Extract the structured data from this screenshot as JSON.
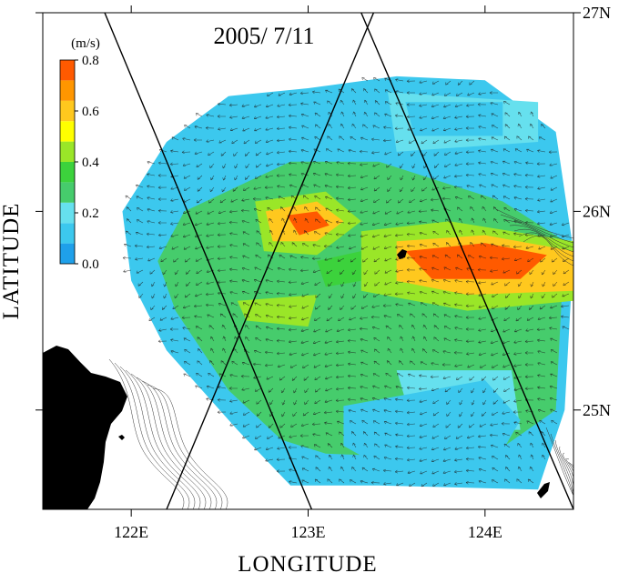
{
  "chart_data": {
    "type": "heatmap",
    "title": "2005/ 7/11",
    "xlabel": "LONGITUDE",
    "ylabel": "LATITUDE",
    "xlim": [
      121.5,
      124.5
    ],
    "ylim": [
      24.5,
      27.0
    ],
    "x_ticks": [
      {
        "value": 122,
        "label": "122E"
      },
      {
        "value": 123,
        "label": "123E"
      },
      {
        "value": 124,
        "label": "124E"
      }
    ],
    "y_ticks": [
      {
        "value": 25,
        "label": "25N"
      },
      {
        "value": 26,
        "label": "26N"
      },
      {
        "value": 27,
        "label": "27N"
      }
    ],
    "colorbar": {
      "unit": "(m/s)",
      "ticks": [
        "0.0",
        "0.2",
        "0.4",
        "0.6",
        "0.8"
      ],
      "colors": [
        "#1fa0ea",
        "#3cc8ee",
        "#66e0ee",
        "#46cc6c",
        "#3cd23c",
        "#9ae628",
        "#ffff00",
        "#ffc81e",
        "#ff9600",
        "#ff5a00"
      ]
    },
    "speed_regions": [
      {
        "level": 1,
        "poly": [
          [
            122.55,
            26.58
          ],
          [
            123.0,
            26.62
          ],
          [
            123.5,
            26.68
          ],
          [
            124.0,
            26.66
          ],
          [
            124.4,
            26.4
          ],
          [
            124.5,
            25.8
          ],
          [
            124.45,
            25.0
          ],
          [
            124.3,
            24.6
          ],
          [
            123.4,
            24.62
          ],
          [
            122.9,
            24.62
          ],
          [
            122.6,
            24.9
          ],
          [
            122.2,
            25.3
          ],
          [
            122.0,
            25.65
          ],
          [
            121.95,
            26.0
          ],
          [
            122.2,
            26.35
          ]
        ]
      },
      {
        "level": 3,
        "poly": [
          [
            122.3,
            26.0
          ],
          [
            122.9,
            26.25
          ],
          [
            123.4,
            26.25
          ],
          [
            124.1,
            26.05
          ],
          [
            124.45,
            25.85
          ],
          [
            124.4,
            25.0
          ],
          [
            124.0,
            24.75
          ],
          [
            123.1,
            24.78
          ],
          [
            122.85,
            24.85
          ],
          [
            122.55,
            25.1
          ],
          [
            122.25,
            25.5
          ],
          [
            122.15,
            25.75
          ]
        ]
      },
      {
        "level": 2,
        "poly": [
          [
            123.5,
            25.2
          ],
          [
            124.15,
            25.2
          ],
          [
            124.2,
            24.9
          ],
          [
            123.6,
            24.9
          ]
        ]
      },
      {
        "level": 1,
        "poly": [
          [
            123.2,
            25.02
          ],
          [
            124.0,
            25.15
          ],
          [
            124.2,
            24.95
          ],
          [
            124.05,
            24.72
          ],
          [
            123.4,
            24.72
          ],
          [
            123.2,
            24.82
          ]
        ]
      },
      {
        "level": 2,
        "poly": [
          [
            123.45,
            26.6
          ],
          [
            124.3,
            26.55
          ],
          [
            124.3,
            26.35
          ],
          [
            123.5,
            26.3
          ]
        ]
      },
      {
        "level": 1,
        "poly": [
          [
            123.55,
            26.55
          ],
          [
            124.1,
            26.55
          ],
          [
            124.1,
            26.38
          ],
          [
            123.6,
            26.38
          ]
        ]
      },
      {
        "level": 5,
        "poly": [
          [
            122.7,
            26.05
          ],
          [
            123.1,
            26.1
          ],
          [
            123.3,
            25.95
          ],
          [
            123.05,
            25.78
          ],
          [
            122.75,
            25.8
          ]
        ]
      },
      {
        "level": 5,
        "poly": [
          [
            123.3,
            25.9
          ],
          [
            123.8,
            25.95
          ],
          [
            124.5,
            25.85
          ],
          [
            124.5,
            25.55
          ],
          [
            123.9,
            25.5
          ],
          [
            123.3,
            25.6
          ]
        ]
      },
      {
        "level": 5,
        "poly": [
          [
            122.6,
            25.55
          ],
          [
            123.05,
            25.58
          ],
          [
            123.0,
            25.42
          ],
          [
            122.65,
            25.45
          ]
        ]
      },
      {
        "level": 7,
        "poly": [
          [
            122.76,
            26.0
          ],
          [
            123.05,
            26.05
          ],
          [
            123.2,
            25.95
          ],
          [
            123.05,
            25.85
          ],
          [
            122.8,
            25.85
          ]
        ]
      },
      {
        "level": 7,
        "poly": [
          [
            123.5,
            25.85
          ],
          [
            124.0,
            25.88
          ],
          [
            124.5,
            25.8
          ],
          [
            124.5,
            25.6
          ],
          [
            123.9,
            25.58
          ],
          [
            123.5,
            25.65
          ]
        ]
      },
      {
        "level": 9,
        "poly": [
          [
            122.88,
            25.98
          ],
          [
            123.05,
            26.0
          ],
          [
            123.12,
            25.93
          ],
          [
            122.95,
            25.88
          ]
        ]
      },
      {
        "level": 9,
        "poly": [
          [
            123.55,
            25.8
          ],
          [
            124.0,
            25.84
          ],
          [
            124.35,
            25.78
          ],
          [
            124.2,
            25.66
          ],
          [
            123.7,
            25.66
          ]
        ]
      },
      {
        "level": 4,
        "poly": [
          [
            123.05,
            25.75
          ],
          [
            123.3,
            25.8
          ],
          [
            123.3,
            25.65
          ],
          [
            123.1,
            25.62
          ]
        ]
      }
    ],
    "tracks": [
      {
        "from": [
          121.85,
          27.0
        ],
        "to": [
          123.02,
          24.5
        ]
      },
      {
        "from": [
          123.37,
          27.0
        ],
        "to": [
          122.2,
          24.5
        ]
      },
      {
        "from": [
          123.3,
          27.0
        ],
        "to": [
          124.5,
          24.5
        ]
      }
    ],
    "land_color": "#000000"
  }
}
